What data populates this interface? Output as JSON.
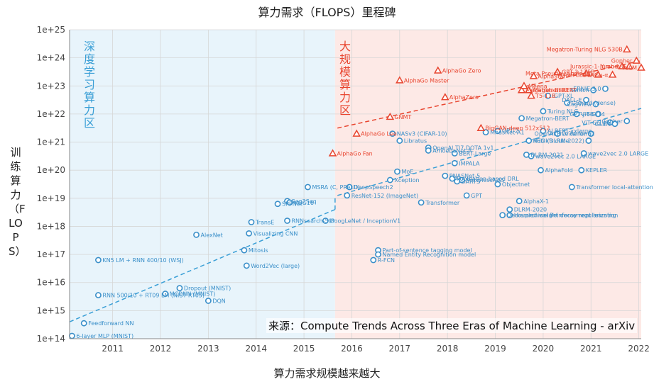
{
  "title": "算力需求（FLOPS）里程碑",
  "xlabel": "算力需求规模越来越大",
  "ylabel": "训练算力（FLOPS）",
  "source": "来源：Compute Trends Across Three Eras of Machine Learning - arXiv",
  "eras": {
    "deep": {
      "label": "深度学习算力区",
      "color": "#3a9fd6",
      "bg": "#e8f4fb"
    },
    "large": {
      "label": "大规模算力区",
      "color": "#e8452f",
      "bg": "#fde9e6"
    }
  },
  "chart_data": {
    "type": "scatter",
    "title": "算力需求（FLOPS）里程碑",
    "xlabel": "算力需求规模越来越大",
    "ylabel": "训练算力（FLOPS）",
    "x_ticks": [
      "2011",
      "2012",
      "2013",
      "2014",
      "2015",
      "2016",
      "2017",
      "2018",
      "2019",
      "2020",
      "2021",
      "2022"
    ],
    "y_ticks": [
      "1e+14",
      "1e+15",
      "1e+16",
      "1e+17",
      "1e+18",
      "1e+19",
      "1e+20",
      "1e+21",
      "1e+22",
      "1e+23",
      "1e+24",
      "1e+25"
    ],
    "xlim": [
      2010.1,
      2022.05
    ],
    "ylim": [
      14,
      25
    ],
    "y_scale": "log10",
    "grid": true,
    "series": [
      {
        "marker": "circle",
        "color": "#3a8fc9",
        "points": [
          {
            "x": 2010.15,
            "y": 14.1,
            "label": "6-layer MLP (MNIST)"
          },
          {
            "x": 2010.4,
            "y": 14.55,
            "label": "Feedforward NN"
          },
          {
            "x": 2010.7,
            "y": 15.55,
            "label": "RNN 500/10 + RT09 LM (NIST RT05)"
          },
          {
            "x": 2010.7,
            "y": 16.8,
            "label": "KN5 LM + RNN 400/10 (WSJ)"
          },
          {
            "x": 2012.1,
            "y": 15.6,
            "label": "MCDNN (MNIST)"
          },
          {
            "x": 2012.4,
            "y": 15.8,
            "label": "Dropout (MNIST)"
          },
          {
            "x": 2013.0,
            "y": 15.35,
            "label": "DQN"
          },
          {
            "x": 2012.75,
            "y": 17.7,
            "label": "AlexNet"
          },
          {
            "x": 2013.75,
            "y": 17.15,
            "label": "Mitosis"
          },
          {
            "x": 2013.8,
            "y": 16.6,
            "label": "Word2Vec (large)"
          },
          {
            "x": 2013.85,
            "y": 17.75,
            "label": "Visualizing CNN"
          },
          {
            "x": 2013.9,
            "y": 18.15,
            "label": "TransE"
          },
          {
            "x": 2014.45,
            "y": 18.8,
            "label": "SPPNet"
          },
          {
            "x": 2014.65,
            "y": 18.9,
            "label": "Seq2Seq"
          },
          {
            "x": 2014.7,
            "y": 18.85,
            "label": "VGG16"
          },
          {
            "x": 2014.65,
            "y": 18.2,
            "label": "RNNsearch-50*"
          },
          {
            "x": 2015.08,
            "y": 19.4,
            "label": "MSRA (C, PReLU)"
          },
          {
            "x": 2015.45,
            "y": 18.2,
            "label": "GoogLeNet / InceptionV1"
          },
          {
            "x": 2015.9,
            "y": 19.1,
            "label": "ResNet-152 (ImageNet)"
          },
          {
            "x": 2015.95,
            "y": 19.4,
            "label": "DeepSpeech2"
          },
          {
            "x": 2016.55,
            "y": 17.15,
            "label": "Part-of-sentence tagging model"
          },
          {
            "x": 2016.55,
            "y": 17.0,
            "label": "Named Entity Recognition model"
          },
          {
            "x": 2016.45,
            "y": 16.8,
            "label": "R-FCN"
          },
          {
            "x": 2016.8,
            "y": 19.65,
            "label": "Xception"
          },
          {
            "x": 2016.95,
            "y": 19.95,
            "label": "MoE"
          },
          {
            "x": 2016.85,
            "y": 21.3,
            "label": "NASv3 (CIFAR-10)"
          },
          {
            "x": 2017.0,
            "y": 21.05,
            "label": "Libratus"
          },
          {
            "x": 2017.45,
            "y": 18.85,
            "label": "Transformer"
          },
          {
            "x": 2017.6,
            "y": 20.8,
            "label": "OpenAI TI7 DOTA 1v1"
          },
          {
            "x": 2017.6,
            "y": 20.7,
            "label": "AmoebaNet-A"
          },
          {
            "x": 2017.95,
            "y": 19.8,
            "label": "PNASNet-5"
          },
          {
            "x": 2018.1,
            "y": 19.7,
            "label": "Population-based DRL"
          },
          {
            "x": 2018.2,
            "y": 19.6,
            "label": "DARTS"
          },
          {
            "x": 2018.15,
            "y": 20.25,
            "label": "IMPALA"
          },
          {
            "x": 2018.15,
            "y": 20.6,
            "label": "BERT-Large"
          },
          {
            "x": 2018.4,
            "y": 19.1,
            "label": "GPT"
          },
          {
            "x": 2018.3,
            "y": 19.65,
            "label": "ProxylessNAS"
          },
          {
            "x": 2018.8,
            "y": 21.35,
            "label": "MnasNet-A1"
          },
          {
            "x": 2019.05,
            "y": 21.4,
            "label": "GPT-2"
          },
          {
            "x": 2019.05,
            "y": 19.5,
            "label": "Objectnet"
          },
          {
            "x": 2019.15,
            "y": 18.4,
            "label": "Decoupled weight decay regularization"
          },
          {
            "x": 2019.3,
            "y": 18.4,
            "label": "Hierarchical Reinforcement learning"
          },
          {
            "x": 2019.3,
            "y": 18.6,
            "label": "DLRM-2020"
          },
          {
            "x": 2019.5,
            "y": 18.9,
            "label": "AlphaX-1"
          },
          {
            "x": 2019.55,
            "y": 21.85,
            "label": "Megatron-BERT"
          },
          {
            "x": 2019.7,
            "y": 21.05,
            "label": "Rubik's cube"
          },
          {
            "x": 2019.65,
            "y": 20.55,
            "label": "DLRM-2021"
          },
          {
            "x": 2019.75,
            "y": 20.5,
            "label": "wave2vec 2.0 LARGE"
          },
          {
            "x": 2019.95,
            "y": 20.0,
            "label": "AlphaFold"
          },
          {
            "x": 2020.0,
            "y": 21.4,
            "label": "ALBERT-xxlarge"
          },
          {
            "x": 2020.0,
            "y": 22.1,
            "label": "Turing NLG"
          },
          {
            "x": 2020.1,
            "y": 22.65,
            "label": "iGPT-XL"
          },
          {
            "x": 2020.3,
            "y": 21.3,
            "label": "Once for all"
          },
          {
            "x": 2020.5,
            "y": 22.4,
            "label": "GShard (dense)"
          },
          {
            "x": 2020.6,
            "y": 19.4,
            "label": "Transformer local-attention (NesT-B)"
          },
          {
            "x": 2020.8,
            "y": 20.0,
            "label": "KEPLER"
          },
          {
            "x": 2020.85,
            "y": 20.6,
            "label": "wave2vec 2.0 LARGE"
          },
          {
            "x": 2020.7,
            "y": 22.0,
            "label": "ViT-G/14"
          },
          {
            "x": 2020.9,
            "y": 22.5,
            "label": "DALL-E"
          },
          {
            "x": 2020.95,
            "y": 21.05,
            "label": "NEO (DLRM-2022)"
          },
          {
            "x": 2021.0,
            "y": 21.3,
            "label": "OpenAI Five Rerun"
          },
          {
            "x": 2021.05,
            "y": 22.85,
            "label": "Switch"
          },
          {
            "x": 2021.1,
            "y": 22.35,
            "label": "CogView"
          },
          {
            "x": 2021.15,
            "y": 22.0,
            "label": "GPT-J-6B"
          },
          {
            "x": 2021.3,
            "y": 22.9,
            "label": "ERNIE 3.0"
          },
          {
            "x": 2021.4,
            "y": 21.7,
            "label": "ViT-G/14"
          },
          {
            "x": 2021.5,
            "y": 21.65,
            "label": "GLaM"
          },
          {
            "x": 2021.75,
            "y": 21.75,
            "label": "Gopher"
          }
        ]
      },
      {
        "marker": "triangle",
        "color": "#e8452f",
        "points": [
          {
            "x": 2015.6,
            "y": 20.6,
            "label": "AlphaGo Fan"
          },
          {
            "x": 2016.1,
            "y": 21.3,
            "label": "AlphaGo Lee"
          },
          {
            "x": 2016.8,
            "y": 21.9,
            "label": "GNMT"
          },
          {
            "x": 2017.0,
            "y": 23.2,
            "label": "AlphaGo Master"
          },
          {
            "x": 2017.8,
            "y": 23.55,
            "label": "AlphaGo Zero"
          },
          {
            "x": 2017.95,
            "y": 22.6,
            "label": "AlphaZero"
          },
          {
            "x": 2018.7,
            "y": 21.5,
            "label": "BigGAN-deep 512x512"
          },
          {
            "x": 2019.55,
            "y": 22.85,
            "label": "Megatron-BERT"
          },
          {
            "x": 2019.6,
            "y": 23.0,
            "label": "Meena"
          },
          {
            "x": 2019.7,
            "y": 22.85,
            "label": "Megatron-BERT"
          },
          {
            "x": 2019.75,
            "y": 22.65,
            "label": "T5-11B"
          },
          {
            "x": 2019.8,
            "y": 23.35,
            "label": "AlphaStar"
          },
          {
            "x": 2020.3,
            "y": 23.5,
            "label": "GPT-3 175B"
          },
          {
            "x": 2020.9,
            "y": 23.45,
            "label": "Meta Pseudo Labels"
          },
          {
            "x": 2021.15,
            "y": 23.4,
            "label": "HyperCLOVA"
          },
          {
            "x": 2021.45,
            "y": 23.4,
            "label": "PanGu-α"
          },
          {
            "x": 2021.65,
            "y": 23.7,
            "label": "Jurassic-1-Jumbo"
          },
          {
            "x": 2021.8,
            "y": 23.7,
            "label": "Yuan 1.0"
          },
          {
            "x": 2021.75,
            "y": 24.3,
            "label": "Megatron-Turing NLG 530B"
          },
          {
            "x": 2021.95,
            "y": 23.9,
            "label": "Gopher"
          },
          {
            "x": 2022.05,
            "y": 23.65,
            "label": "PaLM"
          }
        ]
      }
    ],
    "trend_lines": [
      {
        "from": [
          2010.1,
          14.6
        ],
        "to": [
          2015.65,
          18.6
        ],
        "color": "#3a9fd6"
      },
      {
        "from": [
          2015.65,
          19.0
        ],
        "to": [
          2015.65,
          18.6
        ],
        "color": "#3a9fd6"
      },
      {
        "from": [
          2015.7,
          21.5
        ],
        "to": [
          2022.05,
          23.9
        ],
        "color": "#e8452f"
      },
      {
        "from": [
          2015.7,
          19.1
        ],
        "to": [
          2022.05,
          22.2
        ],
        "color": "#3a9fd6"
      }
    ],
    "era_split_x": 2015.65,
    "x_start": 2010.1,
    "x_end": 2022.05
  }
}
